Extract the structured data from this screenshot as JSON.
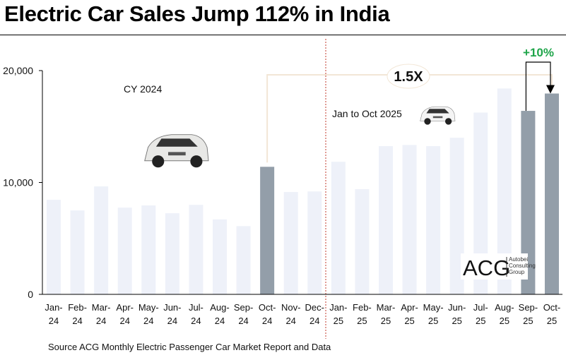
{
  "title": "Electric Car Sales Jump 112% in India",
  "source": "Source ACG Monthly Electric Passenger Car Market Report and Data",
  "chart_data": {
    "type": "bar",
    "categories": [
      [
        "Jan-",
        "24"
      ],
      [
        "Feb-",
        "24"
      ],
      [
        "Mar-",
        "24"
      ],
      [
        "Apr-",
        "24"
      ],
      [
        "May-",
        "24"
      ],
      [
        "Jun-",
        "24"
      ],
      [
        "Jul-",
        "24"
      ],
      [
        "Aug-",
        "24"
      ],
      [
        "Sep-",
        "24"
      ],
      [
        "Oct-",
        "24"
      ],
      [
        "Nov-",
        "24"
      ],
      [
        "Dec-",
        "24"
      ],
      [
        "Jan-",
        "25"
      ],
      [
        "Feb-",
        "25"
      ],
      [
        "Mar-",
        "25"
      ],
      [
        "Apr-",
        "25"
      ],
      [
        "May-",
        "25"
      ],
      [
        "Jun-",
        "25"
      ],
      [
        "Jul-",
        "25"
      ],
      [
        "Aug-",
        "25"
      ],
      [
        "Sep-",
        "25"
      ],
      [
        "Oct-",
        "25"
      ]
    ],
    "values": [
      8450,
      7500,
      9650,
      7750,
      7950,
      7250,
      8000,
      6700,
      6100,
      11400,
      9150,
      9200,
      11850,
      9400,
      13250,
      13350,
      13250,
      14000,
      16250,
      18400,
      16400,
      17950
    ],
    "highlighted": [
      9,
      20,
      21
    ],
    "ylim": [
      0,
      20000
    ],
    "yticks": [
      {
        "v": 0,
        "label": "0"
      },
      {
        "v": 10000,
        "label": "10,000"
      },
      {
        "v": 20000,
        "label": "20,000"
      }
    ],
    "colors": {
      "bar": "#eef1f9",
      "highlight": "#939ea9",
      "divider": "#c0392b",
      "bracket": "#f2e6d6",
      "growth": "#1fa54a"
    },
    "annotations": {
      "cy2024": "CY 2024",
      "ytd2025": "Jan to Oct 2025",
      "multiple": "1.5X",
      "mom": "+10%"
    },
    "logo": {
      "mark": "ACG",
      "lines": [
        "Autobei",
        "Consulting",
        "Group"
      ]
    }
  }
}
